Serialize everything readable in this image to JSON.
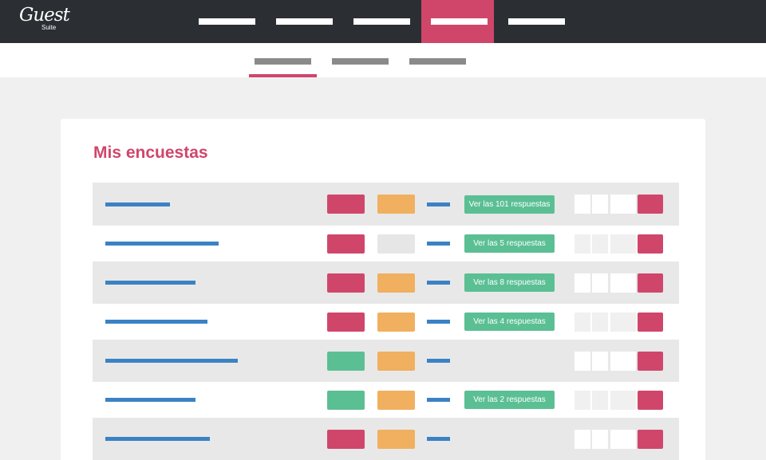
{
  "brand": {
    "logo_main": "Guest",
    "logo_sub": "Suite"
  },
  "colors": {
    "topbar": "#2b2f33",
    "accent": "#d0466b",
    "orange": "#f0b060",
    "green": "#5bbf94",
    "blue": "#3b82c4",
    "gray_chip": "#e6e6e6"
  },
  "main": {
    "title": "Mis encuestas",
    "rows": [
      {
        "chip1": "#d0466b",
        "chip2": "#f0b060",
        "responses": "Ver las 101 respuestas"
      },
      {
        "chip1": "#d0466b",
        "chip2": "#e6e6e6",
        "responses": "Ver las 5 respuestas"
      },
      {
        "chip1": "#d0466b",
        "chip2": "#f0b060",
        "responses": "Ver las 8 respuestas"
      },
      {
        "chip1": "#d0466b",
        "chip2": "#f0b060",
        "responses": "Ver las 4 respuestas"
      },
      {
        "chip1": "#5bbf94",
        "chip2": "#f0b060",
        "responses": ""
      },
      {
        "chip1": "#5bbf94",
        "chip2": "#f0b060",
        "responses": "Ver las 2 respuestas"
      },
      {
        "chip1": "#d0466b",
        "chip2": "#f0b060",
        "responses": ""
      }
    ]
  }
}
